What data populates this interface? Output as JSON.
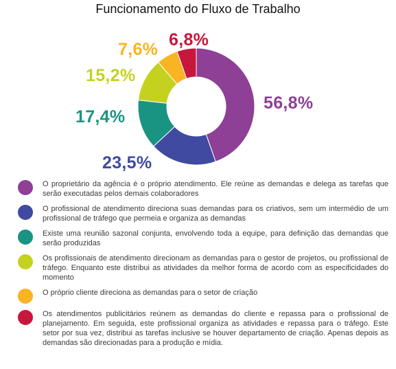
{
  "chart_data": {
    "type": "pie",
    "title": "Funcionamento do Fluxo de Trabalho",
    "categories": [
      "O proprietário da agência é o próprio atendimento. Ele reúne as demandas e delega as tarefas que serão executadas pelos demais colaboradores",
      "O profissional de atendimento direciona suas demandas para os criativos, sem um intermédio de um profissional de tráfego que permeia e organiza as demandas",
      "Existe uma reunião sazonal conjunta, envolvendo toda a equipe, para definição das demandas que serão produzidas",
      "Os profissionais de atendimento direcionam as demandas para o gestor de projetos, ou profissional de tráfego. Enquanto este distribui as atividades da melhor forma de acordo com as especificidades do momento",
      "O próprio cliente direciona as demandas para o setor de criação",
      "Os atendimentos publicitários reúnem as demandas do cliente e repassa para o profissional de planejamento. Em seguida, este profissional organiza as atividades e repassa para o tráfego. Este setor por sua vez, distribui as tarefas inclusive se houver departamento de criação. Apenas depois as demandas são direcionadas para a produção e mídia."
    ],
    "values": [
      56.8,
      23.5,
      17.4,
      15.2,
      7.6,
      6.8
    ],
    "labels": [
      "56,8%",
      "23,5%",
      "17,4%",
      "15,2%",
      "7,6%",
      "6,8%"
    ],
    "colors": [
      "#8e3f96",
      "#3f4aa0",
      "#1a9482",
      "#c4d21f",
      "#f9b423",
      "#c8173c"
    ],
    "legend_position": "bottom"
  }
}
